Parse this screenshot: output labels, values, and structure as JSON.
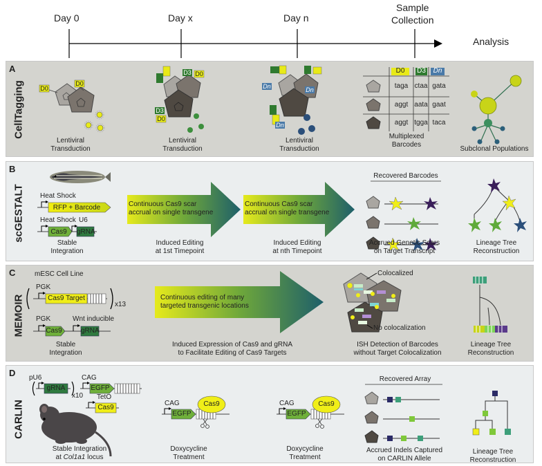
{
  "timeline": {
    "day0": "Day 0",
    "dayx": "Day x",
    "dayn": "Day n",
    "sample_collection_1": "Sample",
    "sample_collection_2": "Collection",
    "analysis": "Analysis"
  },
  "panelA": {
    "letter": "A",
    "name": "CellTagging",
    "tag_d0": "D0",
    "tag_d3": "D3",
    "tag_dn": "Dn",
    "label1_a": "Lentiviral",
    "label1_b": "Transduction",
    "label2_a": "Lentiviral",
    "label2_b": "Transduction",
    "label3_a": "Lentiviral",
    "label3_b": "Transduction",
    "table_headers": [
      "D0",
      "D3",
      "Dn"
    ],
    "table_rows": [
      [
        "taga",
        "ctaa",
        "gata"
      ],
      [
        "aggt",
        "aata",
        "gaat"
      ],
      [
        "aggt",
        "tgga",
        "taca"
      ]
    ],
    "label4_a": "Multiplexed",
    "label4_b": "Barcodes",
    "label5": "Subclonal Populations"
  },
  "panelB": {
    "letter": "B",
    "name": "scGESTALT",
    "heat_shock_1": "Heat Shock",
    "rfp_barcode": "RFP + Barcode",
    "heat_shock_2": "Heat Shock",
    "u6": "U6",
    "cas9": "Cas9",
    "grna": "gRNA",
    "stable_a": "Stable",
    "stable_b": "Integration",
    "arrow1_a": "Continuous Cas9 scar",
    "arrow1_b": "accrual on single transgene",
    "arrow2_a": "Continuous Cas9 scar",
    "arrow2_b": "accrual on single transgene",
    "edit1_a": "Induced Editing",
    "edit1_b": "at 1st Timepoint",
    "edit2_a": "Induced Editing",
    "edit2_b": "at nth Timepoint",
    "recovered": "Recovered Barcodes",
    "accrued_a": "Accrued Genetic Scars",
    "accrued_b": "on Target Transcript",
    "lineage_a": "Lineage Tree",
    "lineage_b": "Reconstruction"
  },
  "panelC": {
    "letter": "C",
    "name": "MEMOIR",
    "mesc": "mESC Cell Line",
    "pgk1": "PGK",
    "cas9_target": "Cas9 Target",
    "x13": "x13",
    "pgk2": "PGK",
    "wnt": "Wnt inducible",
    "cas9": "Cas9",
    "grna": "gRNA",
    "stable_a": "Stable",
    "stable_b": "Integration",
    "arrow_a": "Continuous editing of many",
    "arrow_b": "targeted transgenic locations",
    "induced_a": "Induced Expression of Cas9 and gRNA",
    "induced_b": "to Facilitate Editing of Cas9 Targets",
    "colocalized": "Colocalized",
    "no_coloc": "No colocalization",
    "ish_a": "ISH Detection of Barcodes",
    "ish_b": "without Target Colocalization",
    "lineage_a": "Lineage Tree",
    "lineage_b": "Reconstruction"
  },
  "panelD": {
    "letter": "D",
    "name": "CARLIN",
    "pu6": "pU6",
    "grna": "gRNA",
    "x10": "x10",
    "cag1": "CAG",
    "egfp1": "EGFP",
    "teto": "TetO",
    "cas9_1": "Cas9",
    "stable_a": "Stable Integration",
    "stable_b_prefix": "at ",
    "stable_b_locus": "Col1a1",
    "stable_b_suffix": " locus",
    "cag2": "CAG",
    "egfp2": "EGFP",
    "cas9_2": "Cas9",
    "doxy1_a": "Doxycycline",
    "doxy1_b": "Treatment",
    "cag3": "CAG",
    "egfp3": "EGFP",
    "cas9_3": "Cas9",
    "doxy2_a": "Doxycycline",
    "doxy2_b": "Treatment",
    "recovered": "Recovered Array",
    "accrued_a": "Accrued Indels Captured",
    "accrued_b": "on CARLIN Allele",
    "lineage_a": "Lineage Tree",
    "lineage_b": "Reconstruction"
  }
}
